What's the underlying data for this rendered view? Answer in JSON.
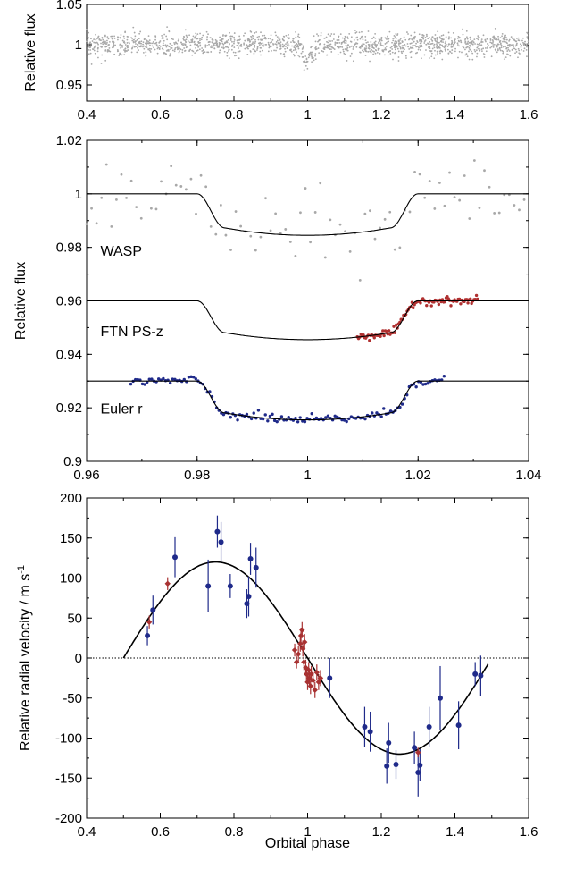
{
  "colors": {
    "wasp_points": "#a8a8a8",
    "ftn_points": "#b03030",
    "euler_points": "#1f2a8a",
    "rv_blue": "#1f2a8a",
    "rv_red": "#a83232",
    "model": "#000000"
  },
  "chart_data": [
    {
      "type": "scatter",
      "panel": "top",
      "ylabel": "Relative flux",
      "xlim": [
        0.4,
        1.6
      ],
      "ylim": [
        0.93,
        1.05
      ],
      "x_ticks": [
        "0.4",
        "0.6",
        "0.8",
        "1",
        "1.2",
        "1.4",
        "1.6"
      ],
      "y_ticks": [
        "0.95",
        "1",
        "1.05"
      ],
      "series": [
        {
          "style": "grey dots",
          "description_of_values": "dense photometry around flux 1.0 with transit dip to ~0.98 at phase 1.0",
          "baseline": 1.0,
          "scatter": 0.01,
          "transit_center": 1.0,
          "transit_depth": 0.015,
          "transit_halfwidth": 0.02
        }
      ]
    },
    {
      "type": "line",
      "panel": "middle",
      "ylabel": "Relative flux",
      "xlim": [
        0.96,
        1.04
      ],
      "ylim": [
        0.9,
        1.02
      ],
      "x_ticks": [
        "0.96",
        "0.98",
        "1",
        "1.02",
        "1.04"
      ],
      "y_ticks": [
        "0.9",
        "0.92",
        "0.94",
        "0.96",
        "0.98",
        "1",
        "1.02"
      ],
      "annotations": [
        "WASP",
        "FTN PS-z",
        "Euler r"
      ],
      "series": [
        {
          "offset": 1.0,
          "depth": 0.0155,
          "x_range": [
            0.96,
            1.04
          ],
          "points_x_range": [
            0.96,
            1.04
          ]
        },
        {
          "offset": 0.96,
          "depth": 0.0145,
          "x_range": [
            0.96,
            1.04
          ],
          "points_x_range": [
            1.009,
            1.031
          ]
        },
        {
          "offset": 0.93,
          "depth": 0.0145,
          "x_range": [
            0.96,
            1.04
          ],
          "points_x_range": [
            0.968,
            1.025
          ]
        }
      ],
      "transit": {
        "ingress_start": 0.98,
        "ingress_end": 0.985,
        "egress_start": 1.015,
        "egress_end": 1.02
      }
    },
    {
      "type": "scatter",
      "panel": "bottom",
      "xlabel": "Orbital phase",
      "ylabel": "Relative radial velocity / m s",
      "ylabel_superscript": "-1",
      "xlim": [
        0.4,
        1.6
      ],
      "ylim": [
        -200,
        200
      ],
      "x_ticks": [
        "0.4",
        "0.6",
        "0.8",
        "1",
        "1.2",
        "1.4",
        "1.6"
      ],
      "y_ticks": [
        "-200",
        "-150",
        "-100",
        "-50",
        "0",
        "50",
        "100",
        "150",
        "200"
      ],
      "model": {
        "amplitude": 120,
        "phase_range": [
          0.5,
          1.49
        ]
      },
      "series": [
        {
          "name_color": "blue",
          "points": [
            [
              0.565,
              28,
              12
            ],
            [
              0.58,
              60,
              18
            ],
            [
              0.64,
              126,
              25
            ],
            [
              0.73,
              90,
              33
            ],
            [
              0.755,
              158,
              20
            ],
            [
              0.765,
              145,
              25
            ],
            [
              0.79,
              90,
              15
            ],
            [
              0.835,
              68,
              18
            ],
            [
              0.84,
              77,
              25
            ],
            [
              0.845,
              124,
              20
            ],
            [
              0.86,
              113,
              25
            ],
            [
              1.06,
              -25,
              25
            ],
            [
              1.155,
              -86,
              25
            ],
            [
              1.17,
              -92,
              25
            ],
            [
              1.215,
              -135,
              22
            ],
            [
              1.22,
              -106,
              25
            ],
            [
              1.24,
              -133,
              18
            ],
            [
              1.29,
              -112,
              20
            ],
            [
              1.3,
              -143,
              30
            ],
            [
              1.305,
              -134,
              20
            ],
            [
              1.33,
              -86,
              25
            ],
            [
              1.36,
              -50,
              40
            ],
            [
              1.41,
              -84,
              30
            ],
            [
              1.455,
              -20,
              15
            ],
            [
              1.47,
              -22,
              25
            ]
          ]
        },
        {
          "name_color": "red",
          "points": [
            [
              0.57,
              45,
              8
            ],
            [
              0.62,
              93,
              8
            ],
            [
              0.965,
              10,
              8
            ],
            [
              0.97,
              -5,
              8
            ],
            [
              0.975,
              5,
              10
            ],
            [
              0.98,
              18,
              10
            ],
            [
              0.982,
              28,
              10
            ],
            [
              0.985,
              35,
              10
            ],
            [
              0.987,
              12,
              10
            ],
            [
              0.99,
              -5,
              10
            ],
            [
              0.992,
              20,
              10
            ],
            [
              0.995,
              -12,
              10
            ],
            [
              0.997,
              -20,
              10
            ],
            [
              1.0,
              -30,
              10
            ],
            [
              1.003,
              -15,
              10
            ],
            [
              1.005,
              -25,
              10
            ],
            [
              1.008,
              -35,
              10
            ],
            [
              1.01,
              -20,
              10
            ],
            [
              1.015,
              -28,
              10
            ],
            [
              1.02,
              -40,
              10
            ],
            [
              1.025,
              -18,
              10
            ],
            [
              1.03,
              -30,
              10
            ],
            [
              1.035,
              -25,
              10
            ],
            [
              1.3,
              -118,
              6
            ]
          ]
        }
      ]
    }
  ]
}
